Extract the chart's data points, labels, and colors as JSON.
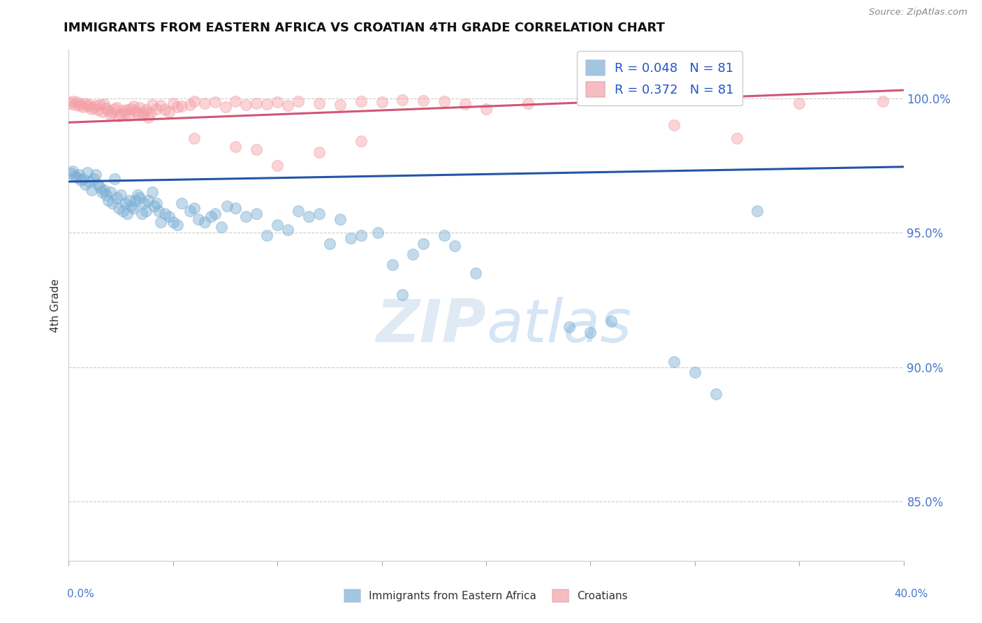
{
  "title": "IMMIGRANTS FROM EASTERN AFRICA VS CROATIAN 4TH GRADE CORRELATION CHART",
  "source": "Source: ZipAtlas.com",
  "ylabel": "4th Grade",
  "ylabel_right_ticks": [
    "85.0%",
    "90.0%",
    "95.0%",
    "100.0%"
  ],
  "ylabel_right_vals": [
    0.85,
    0.9,
    0.95,
    1.0
  ],
  "x_min": 0.0,
  "x_max": 0.4,
  "y_min": 0.828,
  "y_max": 1.018,
  "R_blue": 0.048,
  "R_pink": 0.372,
  "N": 81,
  "blue_color": "#7bafd4",
  "pink_color": "#f4a0a8",
  "blue_line_color": "#2255aa",
  "pink_line_color": "#cc4466",
  "legend_label_blue": "Immigrants from Eastern Africa",
  "legend_label_pink": "Croatians",
  "blue_trend": [
    0.0,
    0.4,
    0.969,
    0.9745
  ],
  "pink_trend": [
    0.0,
    0.4,
    0.991,
    1.003
  ],
  "blue_scatter": [
    [
      0.001,
      0.972
    ],
    [
      0.002,
      0.973
    ],
    [
      0.003,
      0.971
    ],
    [
      0.004,
      0.9705
    ],
    [
      0.005,
      0.9715
    ],
    [
      0.006,
      0.9695
    ],
    [
      0.007,
      0.97
    ],
    [
      0.008,
      0.968
    ],
    [
      0.009,
      0.9725
    ],
    [
      0.01,
      0.969
    ],
    [
      0.011,
      0.966
    ],
    [
      0.012,
      0.97
    ],
    [
      0.013,
      0.9715
    ],
    [
      0.014,
      0.968
    ],
    [
      0.015,
      0.967
    ],
    [
      0.016,
      0.965
    ],
    [
      0.017,
      0.966
    ],
    [
      0.018,
      0.964
    ],
    [
      0.019,
      0.962
    ],
    [
      0.02,
      0.965
    ],
    [
      0.021,
      0.961
    ],
    [
      0.022,
      0.97
    ],
    [
      0.023,
      0.963
    ],
    [
      0.024,
      0.959
    ],
    [
      0.025,
      0.964
    ],
    [
      0.026,
      0.958
    ],
    [
      0.027,
      0.961
    ],
    [
      0.028,
      0.957
    ],
    [
      0.029,
      0.962
    ],
    [
      0.03,
      0.96
    ],
    [
      0.031,
      0.959
    ],
    [
      0.032,
      0.962
    ],
    [
      0.033,
      0.964
    ],
    [
      0.034,
      0.963
    ],
    [
      0.035,
      0.957
    ],
    [
      0.036,
      0.961
    ],
    [
      0.037,
      0.958
    ],
    [
      0.038,
      0.962
    ],
    [
      0.04,
      0.965
    ],
    [
      0.041,
      0.96
    ],
    [
      0.042,
      0.961
    ],
    [
      0.043,
      0.958
    ],
    [
      0.044,
      0.954
    ],
    [
      0.046,
      0.957
    ],
    [
      0.048,
      0.956
    ],
    [
      0.05,
      0.954
    ],
    [
      0.052,
      0.953
    ],
    [
      0.054,
      0.961
    ],
    [
      0.058,
      0.958
    ],
    [
      0.06,
      0.959
    ],
    [
      0.062,
      0.955
    ],
    [
      0.065,
      0.954
    ],
    [
      0.068,
      0.956
    ],
    [
      0.07,
      0.957
    ],
    [
      0.073,
      0.952
    ],
    [
      0.076,
      0.96
    ],
    [
      0.08,
      0.959
    ],
    [
      0.085,
      0.956
    ],
    [
      0.09,
      0.957
    ],
    [
      0.095,
      0.949
    ],
    [
      0.1,
      0.953
    ],
    [
      0.105,
      0.951
    ],
    [
      0.11,
      0.958
    ],
    [
      0.115,
      0.956
    ],
    [
      0.12,
      0.957
    ],
    [
      0.125,
      0.946
    ],
    [
      0.13,
      0.955
    ],
    [
      0.135,
      0.948
    ],
    [
      0.14,
      0.949
    ],
    [
      0.148,
      0.95
    ],
    [
      0.155,
      0.938
    ],
    [
      0.16,
      0.927
    ],
    [
      0.165,
      0.942
    ],
    [
      0.17,
      0.946
    ],
    [
      0.18,
      0.949
    ],
    [
      0.185,
      0.945
    ],
    [
      0.195,
      0.935
    ],
    [
      0.24,
      0.915
    ],
    [
      0.25,
      0.913
    ],
    [
      0.26,
      0.917
    ],
    [
      0.29,
      0.902
    ],
    [
      0.3,
      0.898
    ],
    [
      0.31,
      0.89
    ],
    [
      0.33,
      0.958
    ]
  ],
  "pink_scatter": [
    [
      0.001,
      0.998
    ],
    [
      0.002,
      0.999
    ],
    [
      0.003,
      0.9975
    ],
    [
      0.004,
      0.9985
    ],
    [
      0.005,
      0.9972
    ],
    [
      0.006,
      0.9978
    ],
    [
      0.007,
      0.9968
    ],
    [
      0.008,
      0.9982
    ],
    [
      0.009,
      0.997
    ],
    [
      0.01,
      0.9975
    ],
    [
      0.011,
      0.996
    ],
    [
      0.012,
      0.9965
    ],
    [
      0.013,
      0.9972
    ],
    [
      0.014,
      0.9958
    ],
    [
      0.015,
      0.9975
    ],
    [
      0.016,
      0.995
    ],
    [
      0.017,
      0.9978
    ],
    [
      0.018,
      0.9962
    ],
    [
      0.019,
      0.9955
    ],
    [
      0.02,
      0.994
    ],
    [
      0.021,
      0.9948
    ],
    [
      0.022,
      0.996
    ],
    [
      0.023,
      0.9965
    ],
    [
      0.024,
      0.9935
    ],
    [
      0.025,
      0.9942
    ],
    [
      0.026,
      0.9955
    ],
    [
      0.027,
      0.9945
    ],
    [
      0.028,
      0.9958
    ],
    [
      0.029,
      0.9938
    ],
    [
      0.03,
      0.996
    ],
    [
      0.031,
      0.997
    ],
    [
      0.032,
      0.9952
    ],
    [
      0.033,
      0.9945
    ],
    [
      0.034,
      0.9965
    ],
    [
      0.035,
      0.994
    ],
    [
      0.036,
      0.9948
    ],
    [
      0.037,
      0.9958
    ],
    [
      0.038,
      0.993
    ],
    [
      0.039,
      0.9945
    ],
    [
      0.04,
      0.9975
    ],
    [
      0.042,
      0.996
    ],
    [
      0.044,
      0.9972
    ],
    [
      0.046,
      0.9958
    ],
    [
      0.048,
      0.995
    ],
    [
      0.05,
      0.9982
    ],
    [
      0.052,
      0.9968
    ],
    [
      0.054,
      0.997
    ],
    [
      0.058,
      0.9975
    ],
    [
      0.06,
      0.999
    ],
    [
      0.065,
      0.998
    ],
    [
      0.07,
      0.9985
    ],
    [
      0.075,
      0.9968
    ],
    [
      0.08,
      0.9988
    ],
    [
      0.085,
      0.9975
    ],
    [
      0.09,
      0.998
    ],
    [
      0.095,
      0.9978
    ],
    [
      0.1,
      0.9985
    ],
    [
      0.105,
      0.9972
    ],
    [
      0.11,
      0.9988
    ],
    [
      0.12,
      0.998
    ],
    [
      0.13,
      0.9975
    ],
    [
      0.14,
      0.999
    ],
    [
      0.15,
      0.9985
    ],
    [
      0.16,
      0.9995
    ],
    [
      0.17,
      0.9992
    ],
    [
      0.18,
      0.9988
    ],
    [
      0.19,
      0.9978
    ],
    [
      0.06,
      0.985
    ],
    [
      0.08,
      0.982
    ],
    [
      0.09,
      0.981
    ],
    [
      0.1,
      0.975
    ],
    [
      0.12,
      0.98
    ],
    [
      0.14,
      0.984
    ],
    [
      0.22,
      0.998
    ],
    [
      0.35,
      0.998
    ],
    [
      0.39,
      0.999
    ],
    [
      0.32,
      0.985
    ],
    [
      0.29,
      0.99
    ],
    [
      0.2,
      0.996
    ]
  ]
}
